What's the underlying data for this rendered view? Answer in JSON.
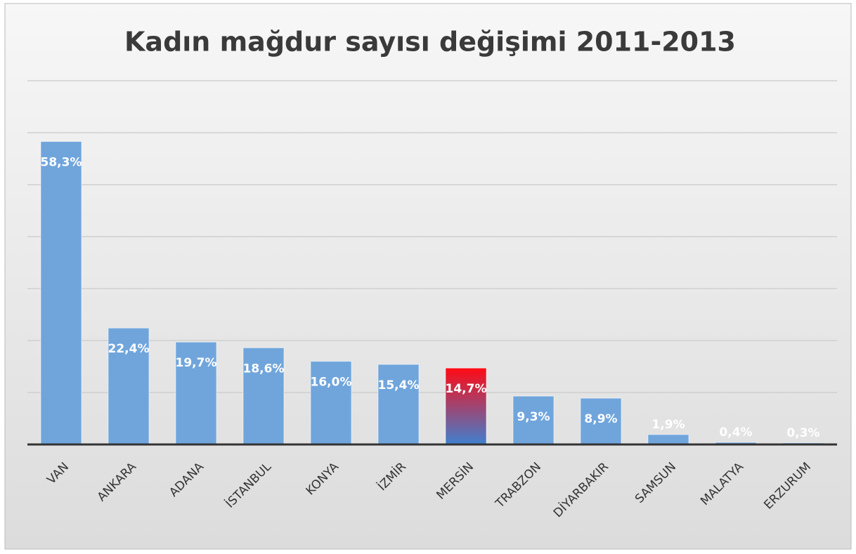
{
  "chart_data": {
    "type": "bar",
    "title": "Kadın mağdur sayısı değişimi 2011-2013",
    "categories": [
      "VAN",
      "ANKARA",
      "ADANA",
      "İSTANBUL",
      "KONYA",
      "İZMİR",
      "MERSİN",
      "TRABZON",
      "DİYARBAKIR",
      "SAMSUN",
      "MALATYA",
      "ERZURUM"
    ],
    "values": [
      58.3,
      22.4,
      19.7,
      18.6,
      16.0,
      15.4,
      14.7,
      9.3,
      8.9,
      1.9,
      0.4,
      0.3
    ],
    "value_labels": [
      "58,3%",
      "22,4%",
      "19,7%",
      "18,6%",
      "16,0%",
      "15,4%",
      "14,7%",
      "9,3%",
      "8,9%",
      "1,9%",
      "0,4%",
      "0,3%"
    ],
    "colors": [
      "#70a5dc",
      "#70a5dc",
      "#70a5dc",
      "#70a5dc",
      "#70a5dc",
      "#70a5dc",
      [
        "#ff0a14",
        "#3f80cf"
      ],
      "#70a5dc",
      "#70a5dc",
      "#70a5dc",
      "#70a5dc",
      "#70a5dc"
    ],
    "ylim": [
      0,
      70
    ],
    "yticks": [
      0,
      10,
      20,
      30,
      40,
      50,
      60,
      70
    ],
    "grid": true
  }
}
